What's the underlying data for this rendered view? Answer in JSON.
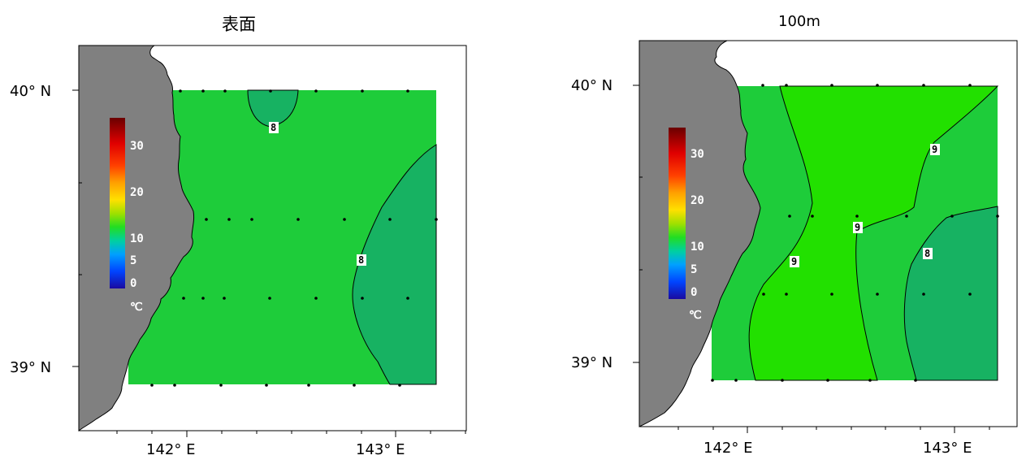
{
  "panels": [
    {
      "title": "表面",
      "lat_labels": [
        "40° N",
        "39° N"
      ],
      "lon_labels": [
        "142° E",
        "143° E"
      ],
      "contour_labels": [
        "8",
        "8"
      ],
      "colorbar": {
        "ticks": [
          "30",
          "20",
          "10",
          "5",
          "0"
        ],
        "unit": "℃"
      }
    },
    {
      "title": "100m",
      "lat_labels": [
        "40° N",
        "39° N"
      ],
      "lon_labels": [
        "142° E",
        "143° E"
      ],
      "contour_labels": [
        "9",
        "9",
        "9",
        "8"
      ],
      "colorbar": {
        "ticks": [
          "30",
          "20",
          "10",
          "5",
          "0"
        ],
        "unit": "℃"
      }
    }
  ],
  "colors": {
    "land": "#808080",
    "field_8": "#17b262",
    "field_9": "#1ecc3a",
    "field_10": "#22e000",
    "contour_line": "#000000",
    "station_dot": "#000000"
  }
}
